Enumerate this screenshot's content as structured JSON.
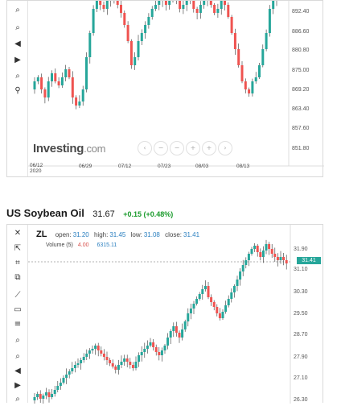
{
  "chart1": {
    "y_labels": [
      "892.40",
      "886.60",
      "880.80",
      "875.00",
      "869.20",
      "863.40",
      "857.60",
      "851.80"
    ],
    "x_labels": [
      "06/12\n2020",
      "06/29",
      "07/12",
      "07/23",
      "08/03",
      "08/13"
    ],
    "logo_text": "Investing",
    "logo_suffix": ".com",
    "nav_buttons": [
      "‹",
      "−",
      "−",
      "+",
      "+",
      "›"
    ]
  },
  "instrument": {
    "name": "US Soybean Oil",
    "price": "31.67",
    "change": "+0.15 (+0.48%)"
  },
  "chart2": {
    "symbol": "ZL",
    "open_label": "open:",
    "open_value": "31.20",
    "high_label": "high:",
    "high_value": "31.45",
    "low_label": "low:",
    "low_value": "31.08",
    "close_label": "close:",
    "close_value": "31.41",
    "volume_label": "Volume (5)",
    "volume_value_1": "4.00",
    "volume_value_2": "6315.11",
    "last_price_tag": "31.41",
    "y_labels": [
      "31.90",
      "31.10",
      "30.30",
      "29.50",
      "28.70",
      "27.90",
      "27.10",
      "26.30"
    ]
  },
  "colors": {
    "up": "#26a69a",
    "down": "#ef5350",
    "change": "#1a9b2c"
  }
}
